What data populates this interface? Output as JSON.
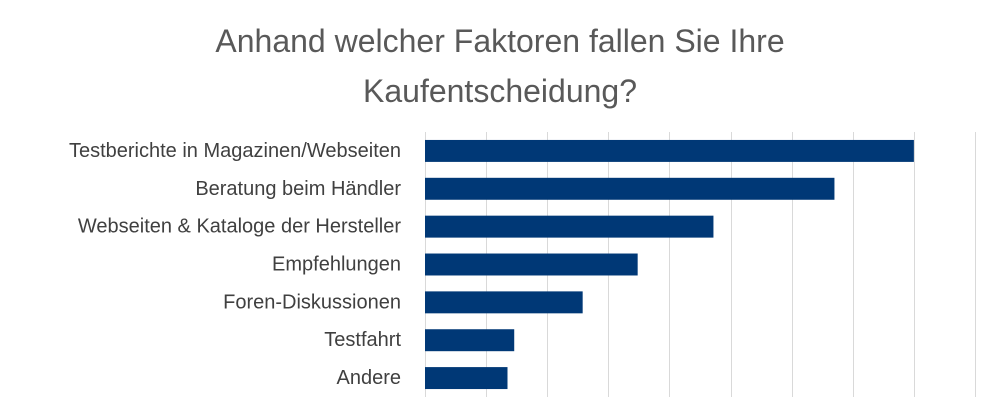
{
  "chart_data": {
    "type": "bar",
    "orientation": "horizontal",
    "title_lines": [
      "Anhand welcher Faktoren fallen Sie Ihre",
      "Kaufentscheidung?"
    ],
    "categories": [
      "Testberichte in Magazinen/Webseiten",
      "Beratung beim Händler",
      "Webseiten & Kataloge der Hersteller",
      "Empfehlungen",
      "Foren-Diskussionen",
      "Testfahrt",
      "Andere"
    ],
    "values": [
      80,
      67,
      47.2,
      34.8,
      25.8,
      14.6,
      13.5
    ],
    "xlim": [
      0,
      90
    ],
    "x_grid_step": 10,
    "grid": true,
    "bar_color": "#003876"
  }
}
